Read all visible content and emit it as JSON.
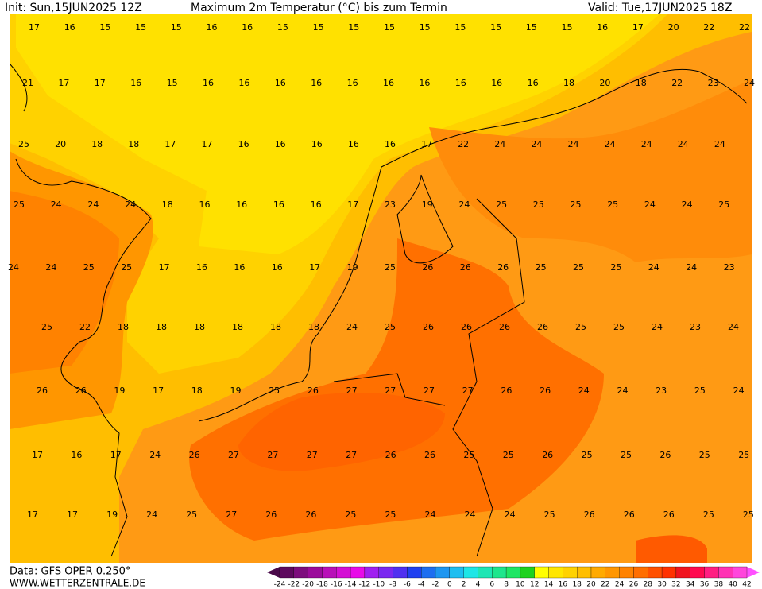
{
  "header": {
    "init": "Init: Sun,15JUN2025 12Z",
    "title": "Maximum 2m Temperatur (°C) bis zum Termin",
    "valid": "Valid: Tue,17JUN2025 18Z"
  },
  "map": {
    "rows": [
      [
        17,
        16,
        15,
        15,
        15,
        16,
        16,
        15,
        15,
        15,
        15,
        15,
        15,
        15,
        15,
        15,
        16,
        17,
        20,
        22,
        22
      ],
      [
        21,
        17,
        17,
        16,
        15,
        16,
        16,
        16,
        16,
        16,
        16,
        16,
        16,
        16,
        16,
        18,
        20,
        18,
        22,
        23,
        24
      ],
      [
        25,
        20,
        18,
        18,
        17,
        17,
        16,
        16,
        16,
        16,
        16,
        17,
        22,
        24,
        24,
        24,
        24,
        24,
        24,
        24
      ],
      [
        25,
        24,
        24,
        24,
        18,
        16,
        16,
        16,
        16,
        17,
        23,
        19,
        24,
        25,
        25,
        25,
        25,
        24,
        24,
        25
      ],
      [
        24,
        24,
        25,
        25,
        17,
        16,
        16,
        16,
        17,
        19,
        25,
        26,
        26,
        26,
        25,
        25,
        25,
        24,
        24,
        23
      ],
      [
        25,
        22,
        18,
        18,
        18,
        18,
        18,
        18,
        24,
        25,
        26,
        26,
        26,
        26,
        25,
        25,
        24,
        23,
        24
      ],
      [
        26,
        26,
        19,
        17,
        18,
        19,
        25,
        26,
        27,
        27,
        27,
        27,
        26,
        26,
        24,
        24,
        23,
        25,
        24
      ],
      [
        17,
        16,
        17,
        24,
        26,
        27,
        27,
        27,
        27,
        26,
        26,
        25,
        25,
        26,
        25,
        25,
        26,
        25,
        25
      ],
      [
        17,
        17,
        19,
        24,
        25,
        27,
        26,
        26,
        25,
        25,
        24,
        24,
        24,
        25,
        26,
        26,
        26,
        25,
        25
      ]
    ]
  },
  "colorbar": {
    "ticks": [
      -24,
      -22,
      -20,
      -18,
      -16,
      -14,
      -12,
      -10,
      -8,
      -6,
      -4,
      -2,
      0,
      2,
      4,
      6,
      8,
      10,
      12,
      14,
      16,
      18,
      20,
      22,
      24,
      26,
      28,
      30,
      32,
      34,
      36,
      38,
      40,
      42
    ],
    "colors": [
      "#5e0a5e",
      "#7d0d7d",
      "#9b0b9b",
      "#b80fb8",
      "#d40fd4",
      "#e80ae8",
      "#a020f0",
      "#7a28f0",
      "#5030f0",
      "#2040f0",
      "#1e6ef0",
      "#1e96f0",
      "#1ebef0",
      "#1ee6e6",
      "#1ee6b4",
      "#1ee68c",
      "#1ee664",
      "#1ed21e",
      "#ffff00",
      "#ffe600",
      "#ffd200",
      "#ffbe00",
      "#ffaa00",
      "#ff9600",
      "#ff8200",
      "#ff6e00",
      "#ff5000",
      "#ff3200",
      "#f0141e",
      "#ff0a50",
      "#ff1e82",
      "#ff32b4",
      "#ff46dc"
    ]
  },
  "footer": {
    "data": "Data: GFS OPER 0.250°",
    "site": "WWW.WETTERZENTRALE.DE"
  }
}
